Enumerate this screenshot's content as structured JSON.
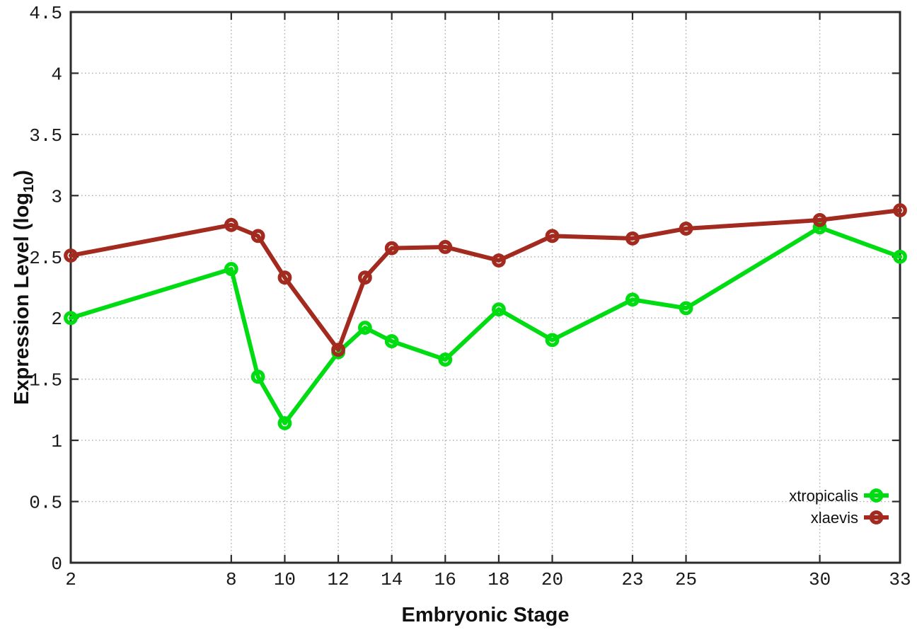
{
  "page": {
    "background": "#ffffff"
  },
  "chart_data": {
    "type": "line",
    "title": "",
    "xlabel": "Embryonic Stage",
    "ylabel": "Expression Level (log10)",
    "ylabel_parts": {
      "prefix": "Expression Level (log",
      "sub": "10",
      "suffix": ")"
    },
    "xlim": [
      2,
      33
    ],
    "ylim": [
      0,
      4.5
    ],
    "x_ticks": [
      2,
      8,
      10,
      12,
      14,
      16,
      18,
      20,
      23,
      25,
      30,
      33
    ],
    "y_ticks": [
      0,
      0.5,
      1,
      1.5,
      2,
      2.5,
      3,
      3.5,
      4,
      4.5
    ],
    "y_tick_labels": [
      "0",
      "0.5",
      "1",
      "1.5",
      "2",
      "2.5",
      "3",
      "3.5",
      "4",
      "4.5"
    ],
    "grid": true,
    "legend_position": "bottom-right",
    "x": [
      2,
      8,
      9,
      10,
      12,
      13,
      14,
      16,
      18,
      20,
      23,
      25,
      30,
      33
    ],
    "series": [
      {
        "name": "xtropicalis",
        "color": "#00DC12",
        "values": [
          2.0,
          2.4,
          1.52,
          1.14,
          1.72,
          1.92,
          1.81,
          1.66,
          2.07,
          1.82,
          2.15,
          2.08,
          2.74,
          2.5
        ]
      },
      {
        "name": "xlaevis",
        "color": "#A32A1F",
        "values": [
          2.51,
          2.76,
          2.67,
          2.33,
          1.74,
          2.33,
          2.57,
          2.58,
          2.47,
          2.67,
          2.65,
          2.73,
          2.8,
          2.88
        ]
      }
    ],
    "axis_color": "#2B2B2B",
    "grid_color": "#ABABAB",
    "text_color": "#1A1A1A"
  }
}
